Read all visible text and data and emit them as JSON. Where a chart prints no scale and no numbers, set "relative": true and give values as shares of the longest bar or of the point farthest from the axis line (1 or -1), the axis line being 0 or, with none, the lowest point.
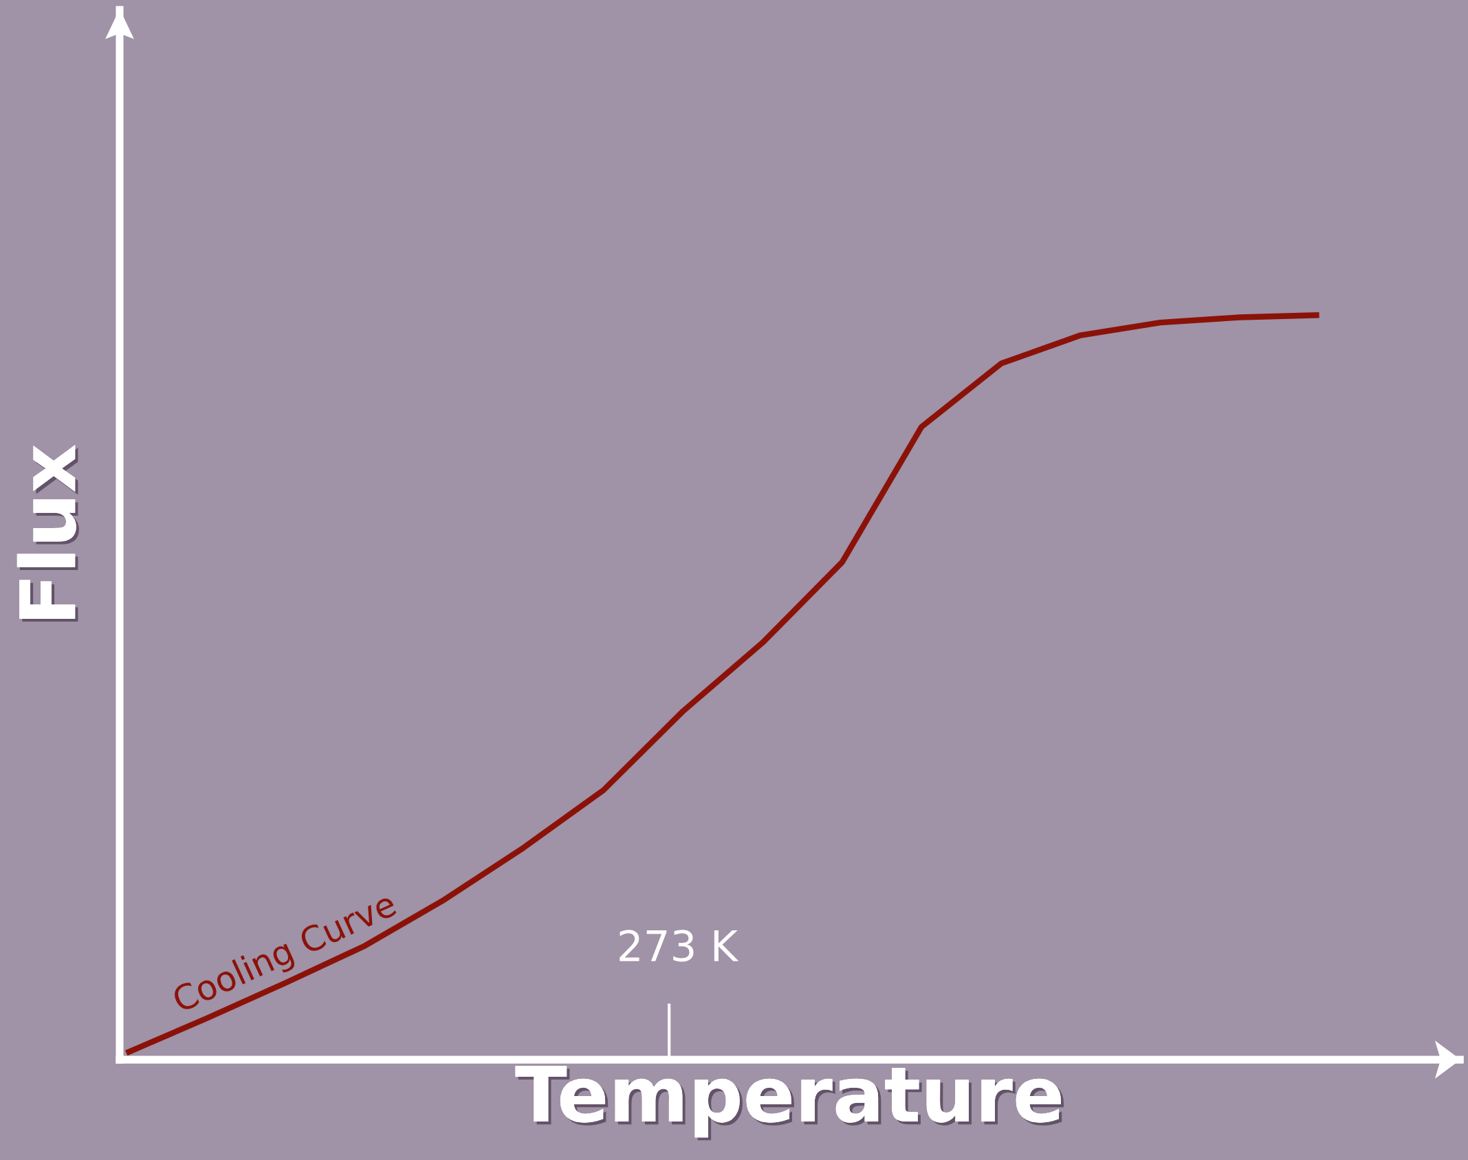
{
  "chart_data": {
    "type": "line",
    "relative": true,
    "xlabel": "Temperature",
    "ylabel": "Flux",
    "categories": [
      null,
      null,
      null,
      null,
      null,
      null,
      null,
      null,
      null,
      null,
      null,
      null,
      null,
      null,
      null,
      null
    ],
    "series": [
      {
        "name": "Cooling Curve",
        "color": "#8b1208",
        "values": [
          0.009,
          0.055,
          0.103,
          0.153,
          0.215,
          0.285,
          0.362,
          0.468,
          0.56,
          0.668,
          0.85,
          0.935,
          0.973,
          0.99,
          0.997,
          1.0
        ]
      }
    ],
    "annotations": [
      "273 K"
    ],
    "legend": false,
    "marker": "none",
    "line_style": "solid"
  }
}
